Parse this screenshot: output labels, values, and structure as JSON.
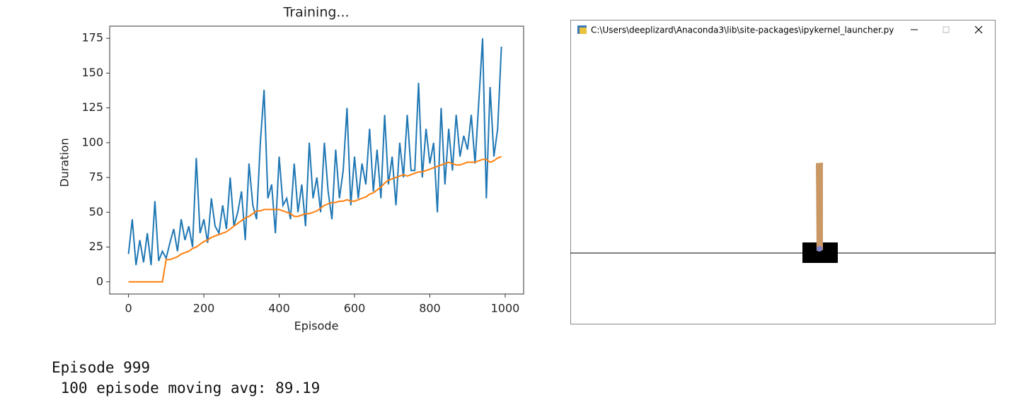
{
  "chart_data": {
    "type": "line",
    "title": "Training...",
    "x_label": "Episode",
    "y_label": "Duration",
    "x": [
      0,
      10,
      20,
      30,
      40,
      50,
      60,
      70,
      80,
      90,
      100,
      110,
      120,
      130,
      140,
      150,
      160,
      170,
      180,
      190,
      200,
      210,
      220,
      230,
      240,
      250,
      260,
      270,
      280,
      290,
      300,
      310,
      320,
      330,
      340,
      350,
      360,
      370,
      380,
      390,
      400,
      410,
      420,
      430,
      440,
      450,
      460,
      470,
      480,
      490,
      500,
      510,
      520,
      530,
      540,
      550,
      560,
      570,
      580,
      590,
      600,
      610,
      620,
      630,
      640,
      650,
      660,
      670,
      680,
      690,
      700,
      710,
      720,
      730,
      740,
      750,
      760,
      770,
      780,
      790,
      800,
      810,
      820,
      830,
      840,
      850,
      860,
      870,
      880,
      890,
      900,
      910,
      920,
      930,
      940,
      950,
      960,
      970,
      980,
      990
    ],
    "series": [
      {
        "color": "#1f77b4",
        "values": [
          20,
          45,
          12,
          30,
          14,
          35,
          12,
          58,
          15,
          22,
          17,
          28,
          38,
          22,
          45,
          30,
          40,
          25,
          89,
          35,
          45,
          28,
          60,
          40,
          35,
          55,
          38,
          75,
          40,
          50,
          65,
          30,
          85,
          55,
          45,
          100,
          138,
          60,
          70,
          35,
          90,
          55,
          60,
          45,
          85,
          50,
          70,
          40,
          100,
          60,
          75,
          50,
          100,
          65,
          45,
          95,
          60,
          80,
          125,
          55,
          90,
          60,
          85,
          70,
          110,
          65,
          95,
          60,
          120,
          70,
          90,
          55,
          100,
          75,
          120,
          80,
          80,
          143,
          75,
          110,
          85,
          100,
          50,
          125,
          70,
          110,
          80,
          120,
          90,
          105,
          95,
          120,
          85,
          130,
          175,
          60,
          140,
          90,
          110,
          169
        ]
      },
      {
        "color": "#ff7f0e",
        "values": [
          0,
          0,
          0,
          0,
          0,
          0,
          0,
          0,
          0,
          0,
          16,
          16,
          17,
          18,
          20,
          21,
          22,
          24,
          25,
          27,
          29,
          30,
          32,
          33,
          34,
          35,
          36,
          38,
          40,
          42,
          44,
          46,
          47,
          49,
          51,
          51,
          52,
          52,
          52,
          52,
          52,
          51,
          50,
          49,
          47,
          47,
          48,
          49,
          49,
          50,
          51,
          53,
          55,
          56,
          57,
          57,
          58,
          58,
          59,
          58,
          58,
          59,
          60,
          61,
          63,
          64,
          66,
          68,
          71,
          73,
          74,
          75,
          76,
          77,
          76,
          77,
          78,
          79,
          79,
          80,
          81,
          82,
          83,
          84,
          85,
          86,
          85,
          84,
          84,
          85,
          86,
          86,
          86,
          87,
          88,
          88,
          86,
          87,
          89,
          90
        ]
      }
    ],
    "xlim": [
      -49.95,
      1048.95
    ],
    "ylim": [
      -8.75,
      183.75
    ],
    "xticks": [
      0,
      200,
      400,
      600,
      800,
      1000
    ],
    "yticks": [
      0,
      25,
      50,
      75,
      100,
      125,
      150,
      175
    ]
  },
  "window": {
    "title": "C:\\Users\\deeplizard\\Anaconda3\\lib\\site-packages\\ipykernel_launcher.py"
  },
  "console": {
    "lines": [
      "Episode 999",
      " 100 episode moving avg: 89.19"
    ]
  }
}
